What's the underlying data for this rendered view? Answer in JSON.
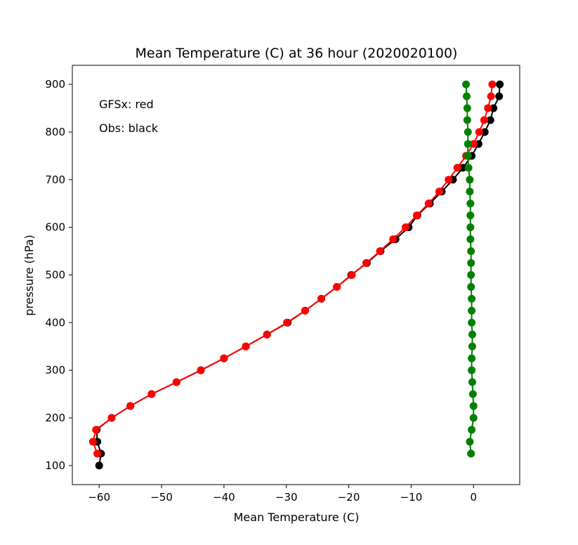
{
  "chart_data": {
    "type": "line",
    "title": "Mean Temperature (C) at 36 hour (2020020100)",
    "xlabel": "Mean Temperature (C)",
    "ylabel": "pressure (hPa)",
    "xlim": [
      -64.3,
      7.4
    ],
    "ylim": [
      60,
      940
    ],
    "grid": false,
    "x_ticks": [
      -60,
      -50,
      -40,
      -30,
      -20,
      -10,
      0
    ],
    "x_tick_labels": [
      "−60",
      "−50",
      "−40",
      "−30",
      "−20",
      "−10",
      "0"
    ],
    "y_ticks": [
      100,
      200,
      300,
      400,
      500,
      600,
      700,
      800,
      900
    ],
    "y_tick_labels": [
      "100",
      "200",
      "300",
      "400",
      "500",
      "600",
      "700",
      "800",
      "900"
    ],
    "annotations": [
      "GFSx: red",
      "Obs: black"
    ],
    "series": [
      {
        "color": "#000000",
        "points": [
          [
            4.2,
            900
          ],
          [
            4.1,
            875
          ],
          [
            3.2,
            850
          ],
          [
            2.7,
            825
          ],
          [
            1.8,
            800
          ],
          [
            0.8,
            775
          ],
          [
            -0.3,
            750
          ],
          [
            -1.7,
            725
          ],
          [
            -3.3,
            700
          ],
          [
            -5.1,
            675
          ],
          [
            -7.0,
            650
          ],
          [
            -9.0,
            625
          ],
          [
            -10.4,
            600
          ],
          [
            -12.5,
            575
          ],
          [
            -14.9,
            550
          ],
          [
            -17.1,
            525
          ],
          [
            -19.6,
            500
          ],
          [
            -21.9,
            475
          ],
          [
            -24.4,
            450
          ],
          [
            -27.0,
            425
          ],
          [
            -29.8,
            400
          ],
          [
            -33.1,
            375
          ],
          [
            -36.5,
            350
          ],
          [
            -40.0,
            325
          ],
          [
            -43.7,
            300
          ],
          [
            -47.6,
            275
          ],
          [
            -51.6,
            250
          ],
          [
            -55.0,
            225
          ],
          [
            -58.0,
            200
          ],
          [
            -60.4,
            175
          ],
          [
            -60.3,
            150
          ],
          [
            -59.7,
            125
          ],
          [
            -60.0,
            100
          ]
        ]
      },
      {
        "color": "#ff0000",
        "points": [
          [
            3.0,
            900
          ],
          [
            2.8,
            875
          ],
          [
            2.3,
            850
          ],
          [
            1.7,
            825
          ],
          [
            0.9,
            800
          ],
          [
            0.0,
            775
          ],
          [
            -1.2,
            750
          ],
          [
            -2.6,
            725
          ],
          [
            -4.0,
            700
          ],
          [
            -5.5,
            675
          ],
          [
            -7.2,
            650
          ],
          [
            -9.1,
            625
          ],
          [
            -10.9,
            600
          ],
          [
            -12.9,
            575
          ],
          [
            -15.0,
            550
          ],
          [
            -17.2,
            525
          ],
          [
            -19.5,
            500
          ],
          [
            -21.9,
            475
          ],
          [
            -24.4,
            450
          ],
          [
            -27.0,
            425
          ],
          [
            -29.9,
            400
          ],
          [
            -33.1,
            375
          ],
          [
            -36.5,
            350
          ],
          [
            -40.0,
            325
          ],
          [
            -43.7,
            300
          ],
          [
            -47.6,
            275
          ],
          [
            -51.6,
            250
          ],
          [
            -55.0,
            225
          ],
          [
            -58.0,
            200
          ],
          [
            -60.5,
            175
          ],
          [
            -61.0,
            150
          ],
          [
            -60.3,
            125
          ]
        ]
      },
      {
        "color": "#008000",
        "points": [
          [
            -1.2,
            900
          ],
          [
            -1.1,
            875
          ],
          [
            -1.0,
            850
          ],
          [
            -1.0,
            825
          ],
          [
            -0.9,
            800
          ],
          [
            -0.9,
            775
          ],
          [
            -0.9,
            750
          ],
          [
            -0.8,
            725
          ],
          [
            -0.6,
            700
          ],
          [
            -0.6,
            675
          ],
          [
            -0.5,
            650
          ],
          [
            -0.5,
            625
          ],
          [
            -0.5,
            600
          ],
          [
            -0.5,
            575
          ],
          [
            -0.4,
            550
          ],
          [
            -0.4,
            525
          ],
          [
            -0.4,
            500
          ],
          [
            -0.4,
            475
          ],
          [
            -0.3,
            450
          ],
          [
            -0.3,
            425
          ],
          [
            -0.3,
            400
          ],
          [
            -0.2,
            375
          ],
          [
            -0.2,
            350
          ],
          [
            -0.3,
            325
          ],
          [
            -0.3,
            300
          ],
          [
            -0.2,
            275
          ],
          [
            -0.1,
            250
          ],
          [
            0.0,
            225
          ],
          [
            0.0,
            200
          ],
          [
            -0.3,
            175
          ],
          [
            -0.6,
            150
          ],
          [
            -0.4,
            125
          ]
        ]
      }
    ]
  }
}
